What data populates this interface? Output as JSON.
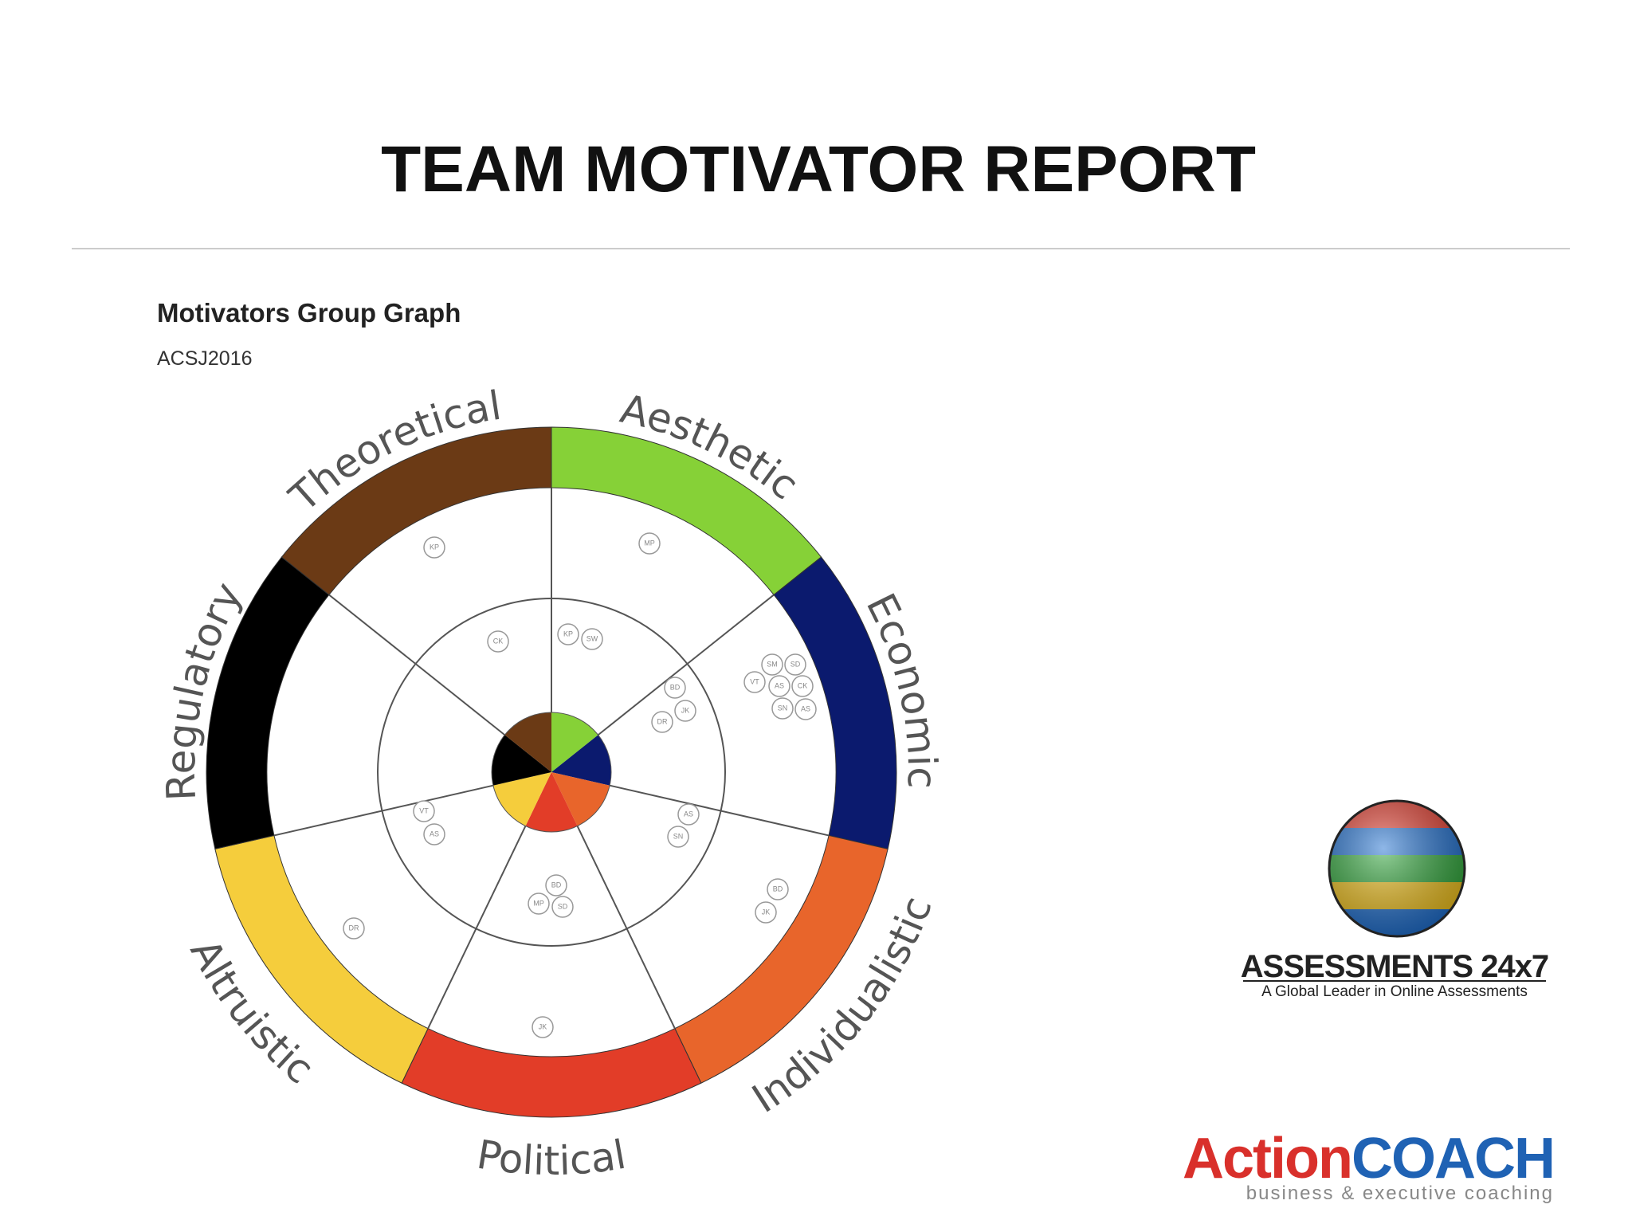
{
  "header": {
    "title": "TEAM MOTIVATOR REPORT"
  },
  "graph": {
    "title": "Motivators Group Graph",
    "subtitle": "ACSJ2016",
    "segments": [
      {
        "label": "Aesthetic",
        "color": "#86d137"
      },
      {
        "label": "Economic",
        "color": "#0b1a6e"
      },
      {
        "label": "Individualistic",
        "color": "#e8652b"
      },
      {
        "label": "Political",
        "color": "#e23d28"
      },
      {
        "label": "Altruistic",
        "color": "#f5cd3c"
      },
      {
        "label": "Regulatory",
        "color": "#000000"
      },
      {
        "label": "Theoretical",
        "color": "#6b3a15"
      }
    ],
    "markers": [
      "KP",
      "MP",
      "CK",
      "KP",
      "SW",
      "SM",
      "SD",
      "VT",
      "AS",
      "CK",
      "SN",
      "AS",
      "BD",
      "JK",
      "DR",
      "AS",
      "SN",
      "BD",
      "JK",
      "BD",
      "MP",
      "SD",
      "VT",
      "AS",
      "DR",
      "JK"
    ]
  },
  "logos": {
    "assessments": {
      "name": "ASSESSMENTS 24x7",
      "tagline": "A Global Leader in Online Assessments"
    },
    "actioncoach": {
      "action": "Action",
      "coach": "COACH",
      "tagline": "business & executive coaching"
    }
  }
}
